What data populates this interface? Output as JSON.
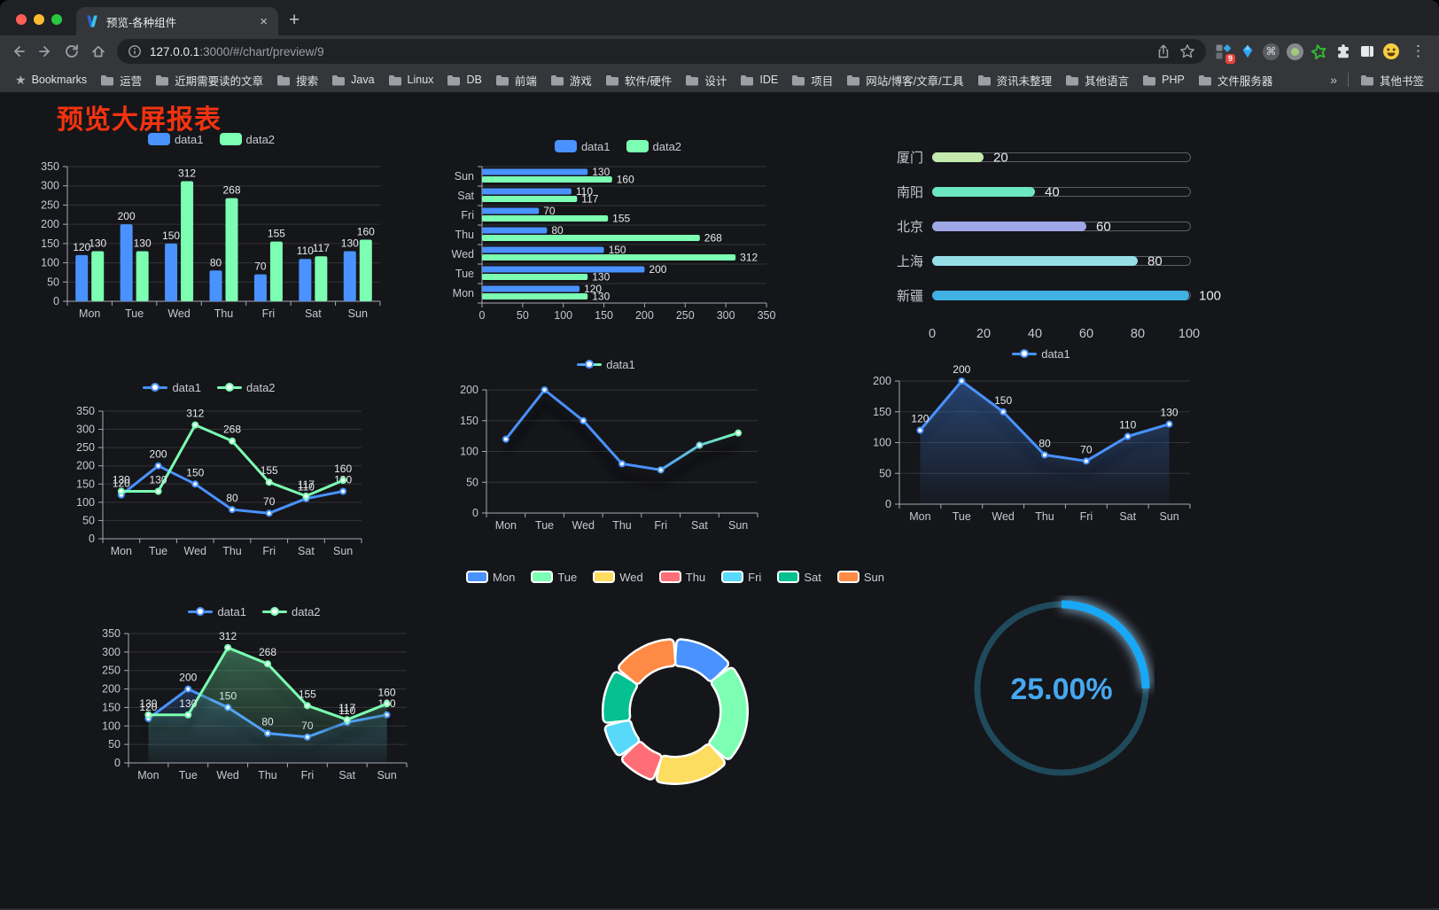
{
  "browser": {
    "window_controls": {
      "close_color": "#ff5f57",
      "minimize_color": "#febc2e",
      "zoom_color": "#28c840"
    },
    "tab": {
      "title": "预览-各种组件",
      "close_glyph": "×"
    },
    "new_tab_glyph": "+",
    "address": {
      "url_host": "127.0.0.1",
      "url_rest": ":3000/#/chart/preview/9"
    },
    "extensions_badge": "9",
    "menu_glyph": "⋮",
    "bookmarks_bar": {
      "root_label": "Bookmarks",
      "folders": [
        "运营",
        "近期需要读的文章",
        "搜索",
        "Java",
        "Linux",
        "DB",
        "前端",
        "游戏",
        "软件/硬件",
        "设计",
        "IDE",
        "项目",
        "网站/博客/文章/工具",
        "资讯未整理",
        "其他语言",
        "PHP",
        "文件服务器"
      ],
      "overflow_glyph": "»",
      "other_bookmarks_label": "其他书签"
    }
  },
  "page": {
    "title": "预览大屏报表",
    "title_color": "#f5330f",
    "background": "#15161a"
  },
  "chart_data": [
    {
      "id": "bar-vertical",
      "type": "bar",
      "categories": [
        "Mon",
        "Tue",
        "Wed",
        "Thu",
        "Fri",
        "Sat",
        "Sun"
      ],
      "series": [
        {
          "name": "data1",
          "color": "#4992ff",
          "values": [
            120,
            200,
            150,
            80,
            70,
            110,
            130
          ]
        },
        {
          "name": "data2",
          "color": "#7cffb2",
          "values": [
            130,
            130,
            312,
            268,
            155,
            117,
            160
          ]
        }
      ],
      "ylim": [
        0,
        350
      ],
      "ytick": 50,
      "labels": true,
      "legend_position": "top",
      "grid": true
    },
    {
      "id": "bar-horizontal",
      "type": "bar",
      "orientation": "horizontal",
      "categories": [
        "Mon",
        "Tue",
        "Wed",
        "Thu",
        "Fri",
        "Sat",
        "Sun"
      ],
      "series": [
        {
          "name": "data1",
          "color": "#4992ff",
          "values": [
            120,
            200,
            150,
            80,
            70,
            110,
            130
          ]
        },
        {
          "name": "data2",
          "color": "#7cffb2",
          "values": [
            130,
            130,
            312,
            268,
            155,
            117,
            160
          ]
        }
      ],
      "xlim": [
        0,
        350
      ],
      "xtick": 50,
      "labels": true,
      "legend_position": "top",
      "grid": true
    },
    {
      "id": "city-progress",
      "type": "progress",
      "items": [
        {
          "label": "厦门",
          "value": 20,
          "color": "#c4ebad"
        },
        {
          "label": "南阳",
          "value": 40,
          "color": "#6be6c1"
        },
        {
          "label": "北京",
          "value": 60,
          "color": "#a0a7e6"
        },
        {
          "label": "上海",
          "value": 80,
          "color": "#96dee8"
        },
        {
          "label": "新疆",
          "value": 100,
          "color": "#3fb1e3"
        }
      ],
      "max": 100,
      "xticks": [
        0,
        20,
        40,
        60,
        80,
        100
      ]
    },
    {
      "id": "line-two",
      "type": "line",
      "categories": [
        "Mon",
        "Tue",
        "Wed",
        "Thu",
        "Fri",
        "Sat",
        "Sun"
      ],
      "series": [
        {
          "name": "data1",
          "color": "#4992ff",
          "values": [
            120,
            200,
            150,
            80,
            70,
            110,
            130
          ]
        },
        {
          "name": "data2",
          "color": "#7cffb2",
          "values": [
            130,
            130,
            312,
            268,
            155,
            117,
            160
          ]
        }
      ],
      "ylim": [
        0,
        350
      ],
      "ytick": 50,
      "labels": true,
      "legend_position": "top",
      "grid": true
    },
    {
      "id": "line-gradient",
      "type": "line",
      "shadow": true,
      "categories": [
        "Mon",
        "Tue",
        "Wed",
        "Thu",
        "Fri",
        "Sat",
        "Sun"
      ],
      "series": [
        {
          "name": "data1",
          "gradient": [
            "#4992ff",
            "#7cffb2"
          ],
          "values": [
            120,
            200,
            150,
            80,
            70,
            110,
            130
          ]
        }
      ],
      "ylim": [
        0,
        200
      ],
      "ytick": 50,
      "labels": false,
      "legend_position": "top",
      "grid": true
    },
    {
      "id": "area-single",
      "type": "area",
      "shadow": true,
      "categories": [
        "Mon",
        "Tue",
        "Wed",
        "Thu",
        "Fri",
        "Sat",
        "Sun"
      ],
      "series": [
        {
          "name": "data1",
          "color": "#4992ff",
          "values": [
            120,
            200,
            150,
            80,
            70,
            110,
            130
          ],
          "area": true
        }
      ],
      "ylim": [
        0,
        200
      ],
      "ytick": 50,
      "labels": true,
      "legend_position": "top",
      "grid": true
    },
    {
      "id": "area-two",
      "type": "area",
      "shadow": true,
      "categories": [
        "Mon",
        "Tue",
        "Wed",
        "Thu",
        "Fri",
        "Sat",
        "Sun"
      ],
      "series": [
        {
          "name": "data1",
          "color": "#4992ff",
          "values": [
            120,
            200,
            150,
            80,
            70,
            110,
            130
          ],
          "area": true
        },
        {
          "name": "data2",
          "color": "#7cffb2",
          "values": [
            130,
            130,
            312,
            268,
            155,
            117,
            160
          ],
          "area": true
        }
      ],
      "ylim": [
        0,
        350
      ],
      "ytick": 50,
      "labels": true,
      "legend_position": "top",
      "grid": true
    },
    {
      "id": "donut",
      "type": "pie",
      "slices": [
        {
          "label": "Mon",
          "value": 120,
          "color": "#4992ff"
        },
        {
          "label": "Tue",
          "value": 200,
          "color": "#7cffb2"
        },
        {
          "label": "Wed",
          "value": 150,
          "color": "#fddd60"
        },
        {
          "label": "Thu",
          "value": 80,
          "color": "#ff6e76"
        },
        {
          "label": "Fri",
          "value": 70,
          "color": "#58d9f9"
        },
        {
          "label": "Sat",
          "value": 110,
          "color": "#05c091"
        },
        {
          "label": "Sun",
          "value": 130,
          "color": "#ff8a45"
        }
      ],
      "legend_position": "top",
      "border_color": "#ffffff"
    },
    {
      "id": "gauge",
      "type": "gauge",
      "value_percent": 25,
      "display": "25.00%",
      "progress_color": "#18a8f5",
      "track_color": "#1f4a5c",
      "text_color": "#47a8ef"
    }
  ]
}
